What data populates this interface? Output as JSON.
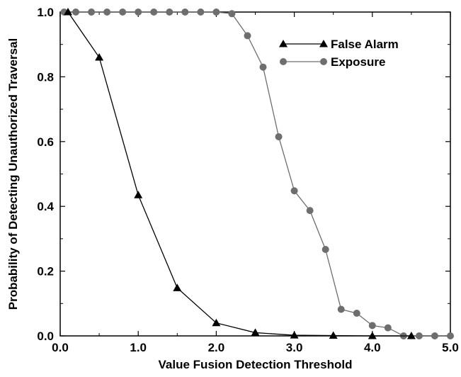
{
  "chart_data": {
    "type": "line",
    "xlabel": "Value Fusion Detection Threshold",
    "ylabel": "Probability of Detecting Unauthorized Traversal",
    "xlim": [
      0,
      5
    ],
    "ylim": [
      0,
      1
    ],
    "xticks": [
      "0.0",
      "1.0",
      "2.0",
      "3.0",
      "4.0",
      "5.0"
    ],
    "yticks": [
      "0.0",
      "0.2",
      "0.4",
      "0.6",
      "0.8",
      "1.0"
    ],
    "xtick_values": [
      0,
      1,
      2,
      3,
      4,
      5
    ],
    "ytick_values": [
      0,
      0.2,
      0.4,
      0.6,
      0.8,
      1.0
    ],
    "grid": false,
    "legend_position": "top-right",
    "series": [
      {
        "name": "False Alarm",
        "marker": "triangle",
        "color": "#000000",
        "x": [
          0.1,
          0.5,
          1.0,
          1.5,
          2.0,
          2.5,
          3.0,
          3.5,
          4.0,
          4.5
        ],
        "y": [
          1.0,
          0.86,
          0.435,
          0.148,
          0.04,
          0.01,
          0.002,
          0.001,
          0.0,
          0.0
        ]
      },
      {
        "name": "Exposure",
        "marker": "circle",
        "color": "#6e6e6e",
        "x": [
          0.05,
          0.2,
          0.4,
          0.6,
          0.8,
          1.0,
          1.2,
          1.4,
          1.6,
          1.8,
          2.0,
          2.2,
          2.4,
          2.6,
          2.8,
          3.0,
          3.2,
          3.4,
          3.6,
          3.8,
          4.0,
          4.2,
          4.4,
          4.6,
          4.8,
          5.0
        ],
        "y": [
          1.0,
          1.0,
          1.0,
          1.0,
          1.0,
          1.0,
          1.0,
          1.0,
          1.0,
          1.0,
          1.0,
          0.995,
          0.927,
          0.83,
          0.615,
          0.448,
          0.387,
          0.267,
          0.082,
          0.07,
          0.032,
          0.025,
          0.0,
          0.0,
          0.0,
          0.0
        ]
      }
    ]
  }
}
